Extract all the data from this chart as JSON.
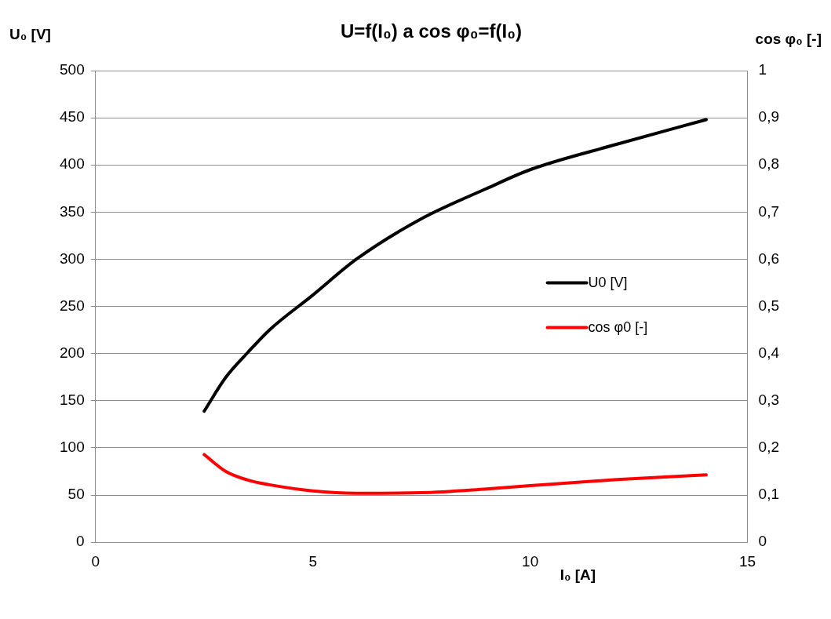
{
  "chart_data": {
    "type": "line",
    "title": "U=f(I₀) a cos φ₀=f(I₀)",
    "xlabel": "I₀ [A]",
    "ylabel": "U₀ [V]",
    "y2label": "cos φ₀ [-]",
    "x": [
      2.5,
      3,
      3.5,
      4,
      5,
      6,
      7.5,
      9,
      10,
      12,
      14.05
    ],
    "series": [
      {
        "name": "U0 [V]",
        "color": "#000000",
        "values": [
          139,
          175,
          201,
          225,
          262,
          300,
          343,
          375,
          395,
          422,
          448
        ]
      },
      {
        "name": "cos φ0 [-]",
        "color": "#ff0000",
        "axis": "y2",
        "values": [
          0.186,
          0.15,
          0.132,
          0.122,
          0.109,
          0.104,
          0.105,
          0.113,
          0.12,
          0.133,
          0.143
        ]
      }
    ],
    "xlim": [
      0,
      15
    ],
    "xticks": [
      0,
      5,
      10,
      15
    ],
    "ylim": [
      0,
      500
    ],
    "yticks": [
      0,
      50,
      100,
      150,
      200,
      250,
      300,
      350,
      400,
      450,
      500
    ],
    "y2lim": [
      0,
      1
    ],
    "y2ticks": [
      0,
      {
        "value": 0.1,
        "label": "0,1"
      },
      {
        "value": 0.2,
        "label": "0,2"
      },
      {
        "value": 0.3,
        "label": "0,3"
      },
      {
        "value": 0.4,
        "label": "0,4"
      },
      {
        "value": 0.5,
        "label": "0,5"
      },
      {
        "value": 0.6,
        "label": "0,6"
      },
      {
        "value": 0.7,
        "label": "0,7"
      },
      {
        "value": 0.8,
        "label": "0,8"
      },
      {
        "value": 0.9,
        "label": "0,9"
      },
      1
    ],
    "grid": "y",
    "legend": "right",
    "marker": "none",
    "line_style": "solid"
  }
}
